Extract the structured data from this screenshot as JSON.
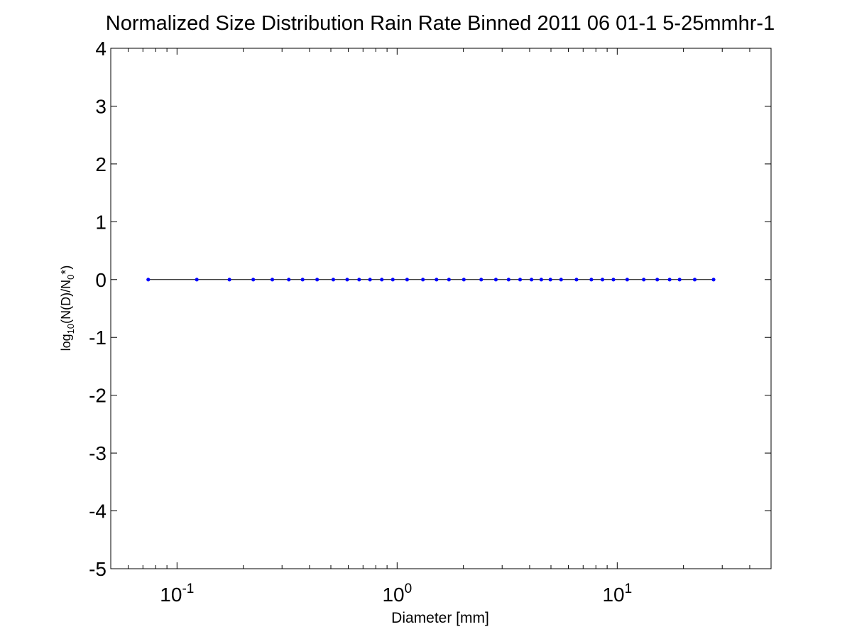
{
  "chart_data": {
    "type": "line",
    "title": "Normalized Size Distribution Rain Rate Binned 2011 06 01-1 5-25mmhr-1",
    "xlabel": "Diameter [mm]",
    "ylabel": {
      "prefix": "log",
      "sub1": "10",
      "mid": "(N(D)/N",
      "sub2": "0",
      "suffix": "*)"
    },
    "xscale": "log",
    "xlim": [
      0.05,
      50
    ],
    "ylim": [
      -5,
      4
    ],
    "xticks": [
      {
        "value": 0.1,
        "base": "10",
        "exp": "-1"
      },
      {
        "value": 1,
        "base": "10",
        "exp": "0"
      },
      {
        "value": 10,
        "base": "10",
        "exp": "1"
      }
    ],
    "yticks": [
      {
        "value": 4,
        "label": "4"
      },
      {
        "value": 3,
        "label": "3"
      },
      {
        "value": 2,
        "label": "2"
      },
      {
        "value": 1,
        "label": "1"
      },
      {
        "value": 0,
        "label": "0"
      },
      {
        "value": -1,
        "label": "-1"
      },
      {
        "value": -2,
        "label": "-2"
      },
      {
        "value": -3,
        "label": "-3"
      },
      {
        "value": -4,
        "label": "-4"
      },
      {
        "value": -5,
        "label": "-5"
      }
    ],
    "grid": false,
    "line_color": "#000000",
    "marker_color": "#0000ff",
    "series": [
      {
        "x": [
          0.074,
          0.123,
          0.173,
          0.222,
          0.271,
          0.322,
          0.372,
          0.433,
          0.513,
          0.593,
          0.672,
          0.753,
          0.852,
          0.956,
          1.11,
          1.31,
          1.51,
          1.72,
          2.01,
          2.41,
          2.81,
          3.21,
          3.62,
          4.08,
          4.52,
          4.97,
          5.56,
          6.53,
          7.63,
          8.57,
          9.61,
          11.1,
          13.2,
          15.2,
          17.3,
          19.2,
          22.5,
          27.4
        ],
        "y": [
          0,
          0,
          0,
          0,
          0,
          0,
          0,
          0,
          0,
          0,
          0,
          0,
          0,
          0,
          0,
          0,
          0,
          0,
          0,
          0,
          0,
          0,
          0,
          0,
          0,
          0,
          0,
          0,
          0,
          0,
          0,
          0,
          0,
          0,
          0,
          0,
          0,
          0
        ]
      }
    ]
  }
}
